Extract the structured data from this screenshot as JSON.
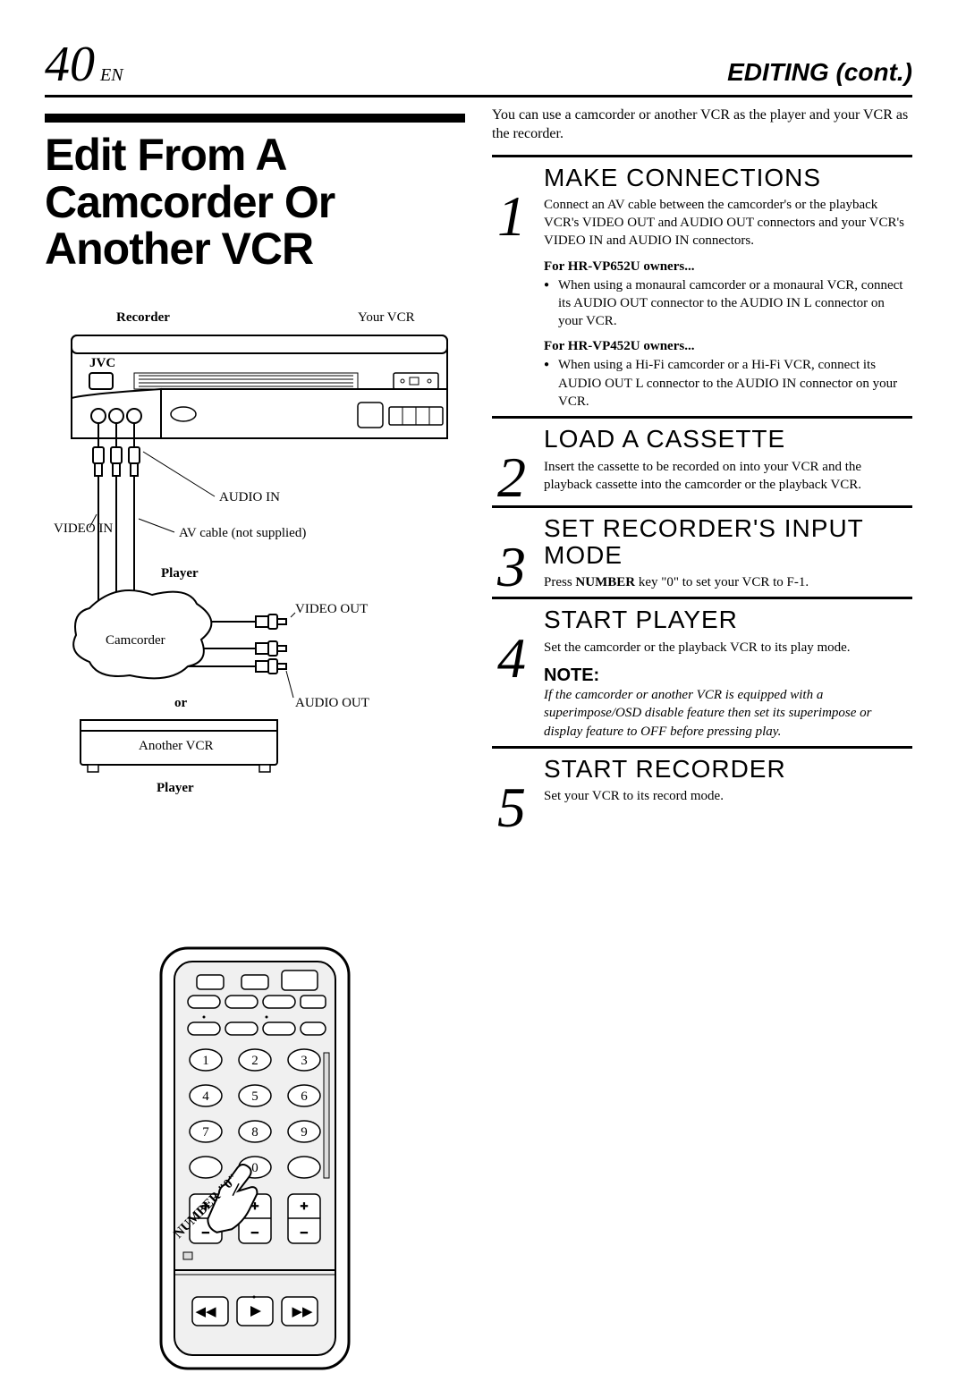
{
  "header": {
    "page_number": "40",
    "lang": "EN",
    "section": "EDITING (cont.)"
  },
  "main_title": "Edit From A Camcorder Or Another VCR",
  "diagram": {
    "recorder_label": "Recorder",
    "your_vcr": "Your VCR",
    "brand": "JVC",
    "video_in": "VIDEO IN",
    "audio_in": "AUDIO IN",
    "av_cable": "AV cable (not supplied)",
    "player_label": "Player",
    "camcorder": "Camcorder",
    "video_out": "VIDEO OUT",
    "audio_out": "AUDIO OUT",
    "or": "or",
    "another_vcr": "Another VCR",
    "player_label2": "Player",
    "number0": "NUMBER \"0\""
  },
  "intro": "You can use a camcorder or another VCR as the player and your VCR as the recorder.",
  "steps": [
    {
      "num": "1",
      "title": "MAKE CONNECTIONS",
      "text": "Connect an AV cable between the camcorder's or the playback VCR's VIDEO OUT and AUDIO OUT connectors and your VCR's VIDEO IN and AUDIO IN connectors.",
      "owners": [
        {
          "label": "For HR-VP652U owners...",
          "bullet": "When using a monaural camcorder or a monaural VCR, connect its AUDIO OUT connector to the AUDIO IN L connector on your VCR."
        },
        {
          "label": "For HR-VP452U owners...",
          "bullet": "When using a Hi-Fi camcorder or a Hi-Fi VCR, connect its AUDIO OUT L connector to the AUDIO IN connector on your VCR."
        }
      ]
    },
    {
      "num": "2",
      "title": "LOAD A CASSETTE",
      "text": "Insert the cassette to be recorded on into your VCR and the playback cassette into the camcorder or the playback VCR."
    },
    {
      "num": "3",
      "title": "SET RECORDER'S INPUT MODE",
      "html": "Press <b>NUMBER</b> key \"0\" to set your VCR to F-1."
    },
    {
      "num": "4",
      "title": "START PLAYER",
      "text": "Set the camcorder or the playback VCR to its play mode.",
      "note_label": "NOTE:",
      "note": "If the camcorder or another VCR is equipped with a superimpose/OSD disable feature then set its superimpose or display feature to OFF before pressing play."
    },
    {
      "num": "5",
      "title": "START RECORDER",
      "text": "Set your VCR to its record mode."
    }
  ]
}
